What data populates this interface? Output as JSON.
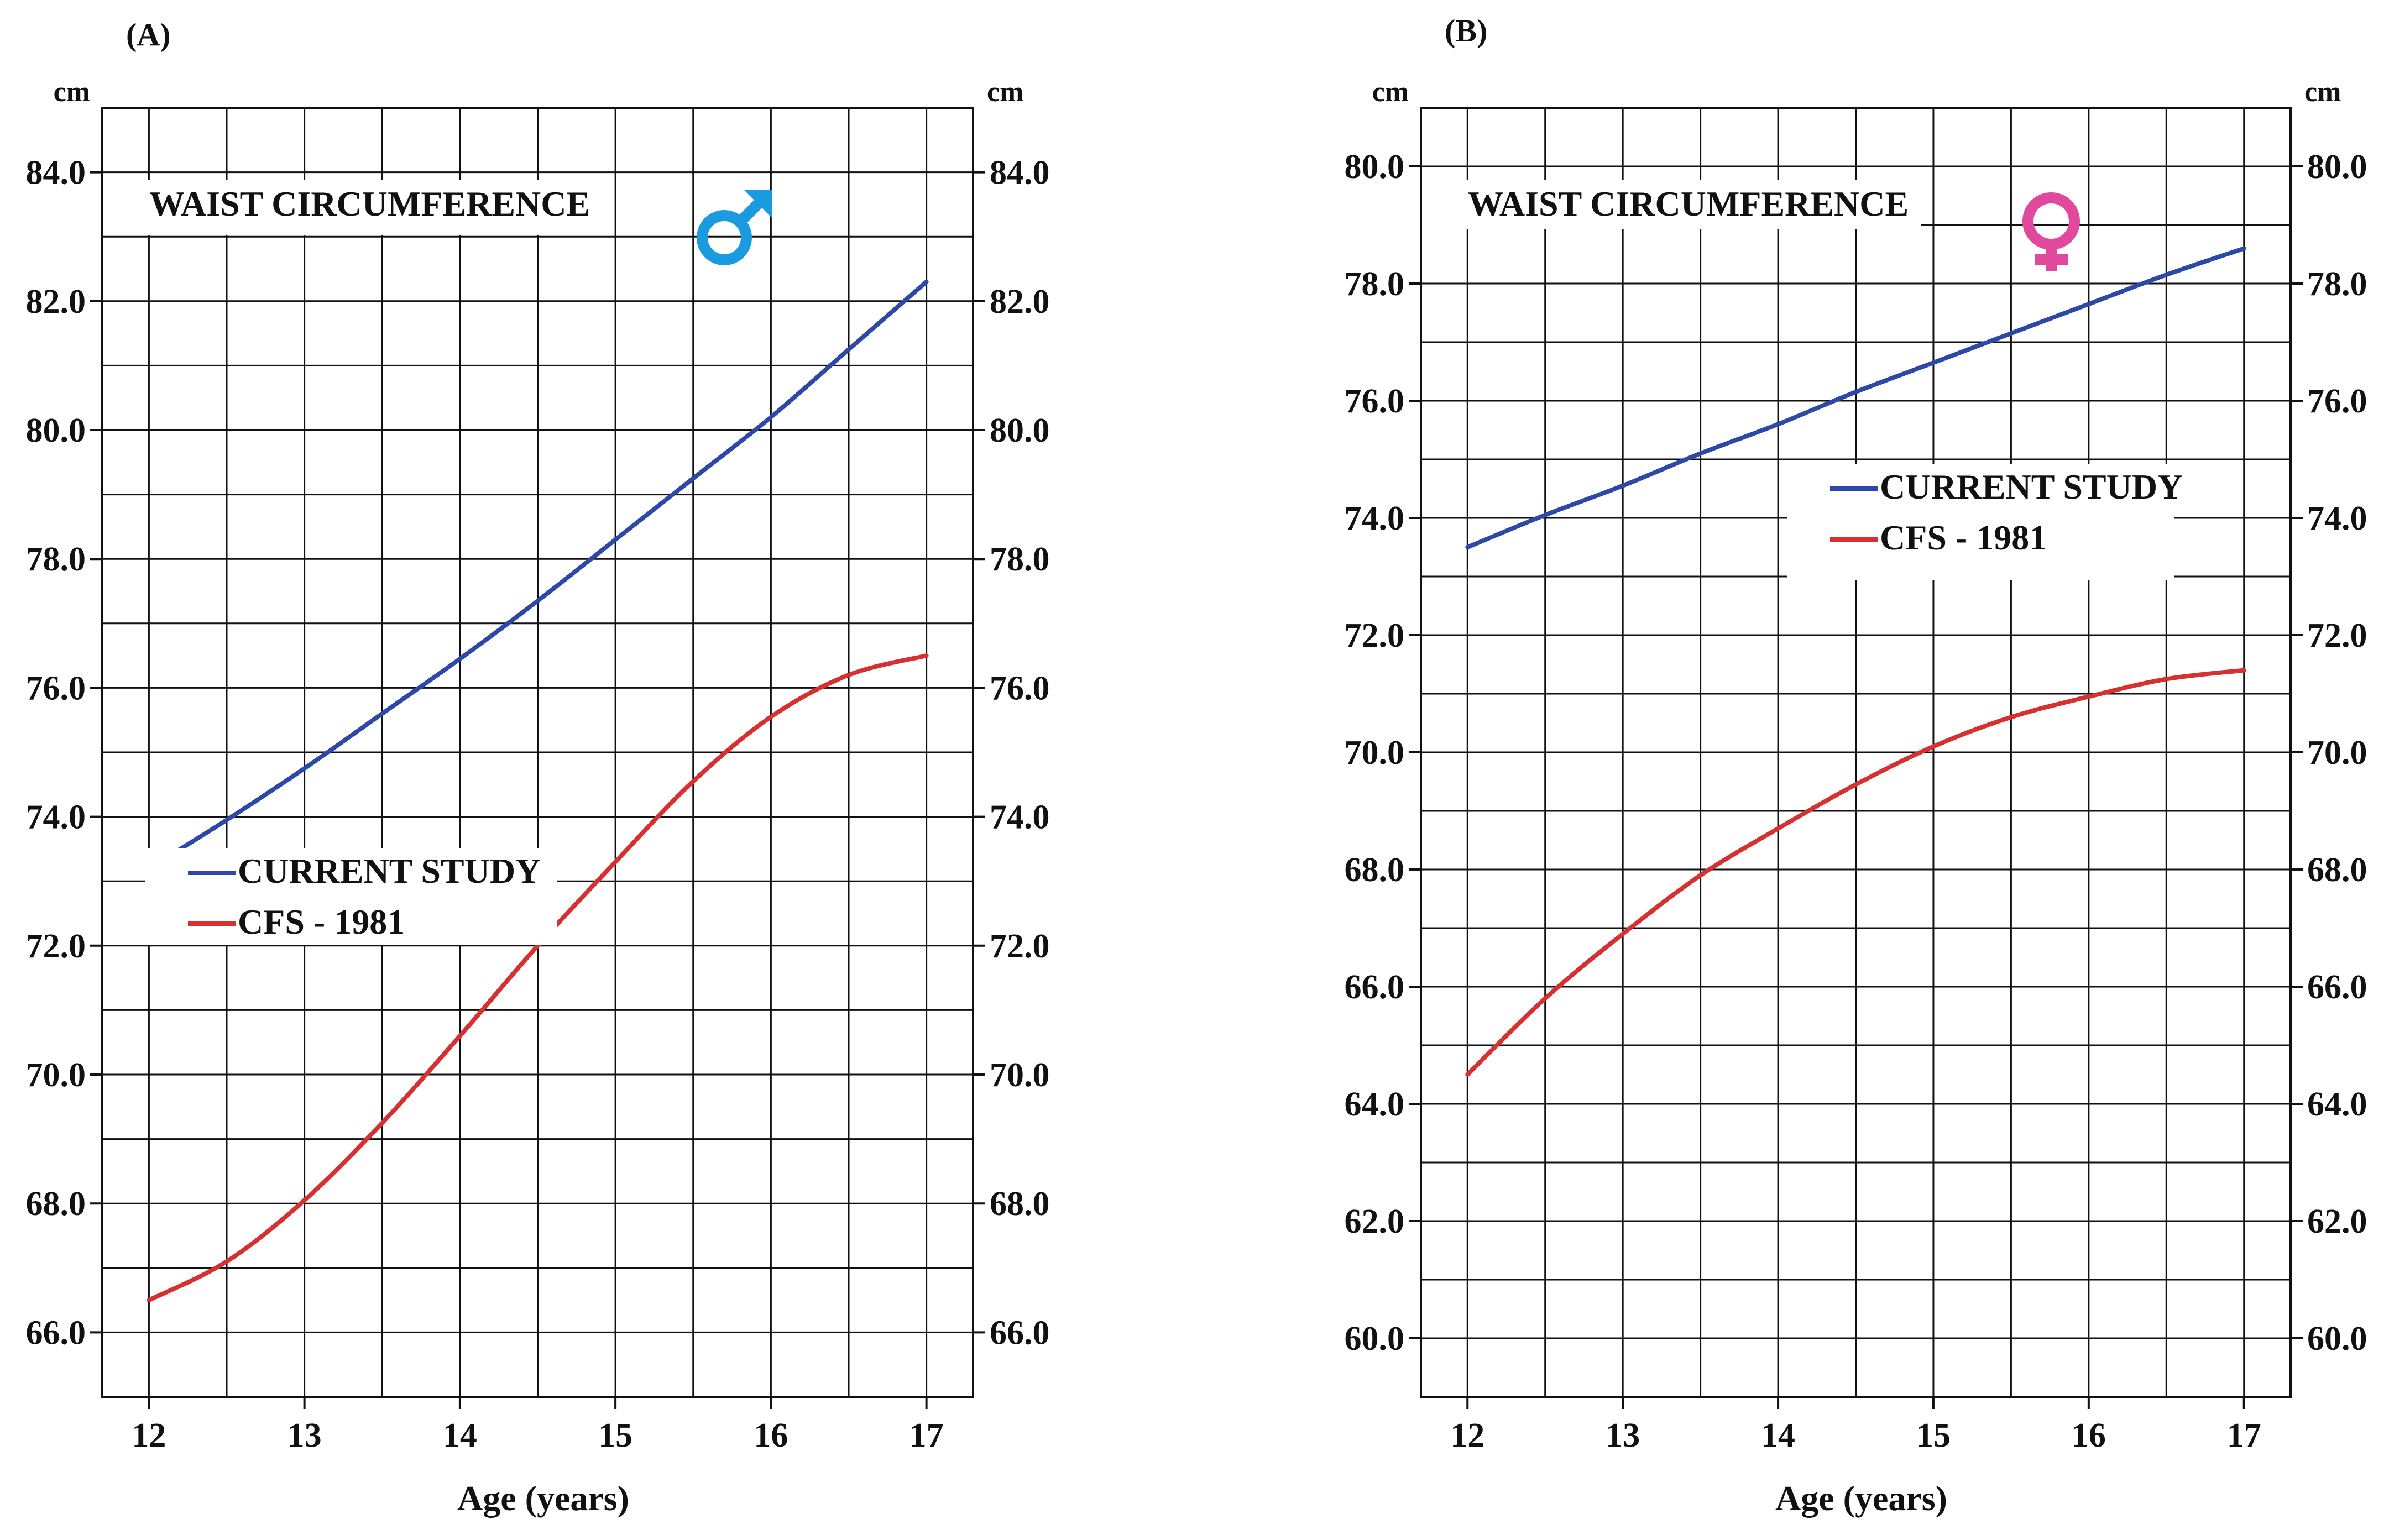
{
  "chart_data": [
    {
      "type": "line",
      "panel_label": "(A)",
      "title": "WAIST CIRCUMFERENCE",
      "sex_symbol": "male-symbol",
      "symbol_color": "#1a9be0",
      "xlabel": "Age (years)",
      "unit_left": "cm",
      "unit_right": "cm",
      "xlim": [
        11.7,
        17.3
      ],
      "ylim": [
        65.0,
        85.0
      ],
      "x_ticks": [
        "12",
        "13",
        "14",
        "15",
        "16",
        "17"
      ],
      "y_ticks": [
        "66.0",
        "68.0",
        "70.0",
        "72.0",
        "74.0",
        "76.0",
        "78.0",
        "80.0",
        "82.0",
        "84.0"
      ],
      "legend_position": "lower-left",
      "grid": true,
      "series": [
        {
          "name": "CURRENT STUDY",
          "color": "#2e48a8",
          "x": [
            12,
            12.5,
            13,
            13.5,
            14,
            14.5,
            15,
            15.5,
            16,
            16.5,
            17
          ],
          "y": [
            73.2,
            73.95,
            74.75,
            75.6,
            76.45,
            77.35,
            78.3,
            79.25,
            80.2,
            81.25,
            82.3
          ]
        },
        {
          "name": "CFS - 1981",
          "color": "#d63030",
          "x": [
            12,
            12.5,
            13,
            13.5,
            14,
            14.5,
            15,
            15.5,
            16,
            16.5,
            17
          ],
          "y": [
            66.5,
            67.1,
            68.05,
            69.25,
            70.6,
            72.0,
            73.3,
            74.55,
            75.55,
            76.2,
            76.5
          ]
        }
      ]
    },
    {
      "type": "line",
      "panel_label": "(B)",
      "title": "WAIST CIRCUMFERENCE",
      "sex_symbol": "female-symbol",
      "symbol_color": "#e0499e",
      "xlabel": "Age (years)",
      "unit_left": "cm",
      "unit_right": "cm",
      "xlim": [
        11.7,
        17.3
      ],
      "ylim": [
        59.0,
        81.0
      ],
      "x_ticks": [
        "12",
        "13",
        "14",
        "15",
        "16",
        "17"
      ],
      "y_ticks": [
        "60.0",
        "62.0",
        "64.0",
        "66.0",
        "68.0",
        "70.0",
        "72.0",
        "74.0",
        "76.0",
        "78.0",
        "80.0"
      ],
      "legend_position": "upper-middle",
      "grid": true,
      "series": [
        {
          "name": "CURRENT STUDY",
          "color": "#2e48a8",
          "x": [
            12,
            12.5,
            13,
            13.5,
            14,
            14.5,
            15,
            15.5,
            16,
            16.5,
            17
          ],
          "y": [
            73.5,
            74.05,
            74.55,
            75.1,
            75.6,
            76.15,
            76.65,
            77.15,
            77.65,
            78.15,
            78.6
          ]
        },
        {
          "name": "CFS - 1981",
          "color": "#d63030",
          "x": [
            12,
            12.5,
            13,
            13.5,
            14,
            14.5,
            15,
            15.5,
            16,
            16.5,
            17
          ],
          "y": [
            64.5,
            65.8,
            66.9,
            67.9,
            68.7,
            69.45,
            70.1,
            70.6,
            70.95,
            71.25,
            71.4
          ]
        }
      ]
    }
  ]
}
